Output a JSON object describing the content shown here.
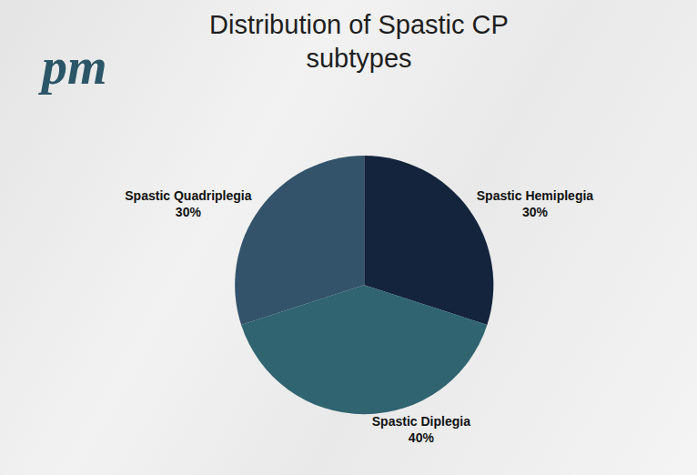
{
  "logo": "pm",
  "chart_data": {
    "type": "pie",
    "title": "Distribution of Spastic CP subtypes",
    "categories": [
      "Spastic Hemiplegia",
      "Spastic Diplegia",
      "Spastic Quadriplegia"
    ],
    "values": [
      30,
      40,
      30
    ],
    "value_labels": [
      "30%",
      "40%",
      "30%"
    ],
    "colors": [
      "#14243d",
      "#2f6470",
      "#33536b"
    ],
    "data_labels": true
  }
}
